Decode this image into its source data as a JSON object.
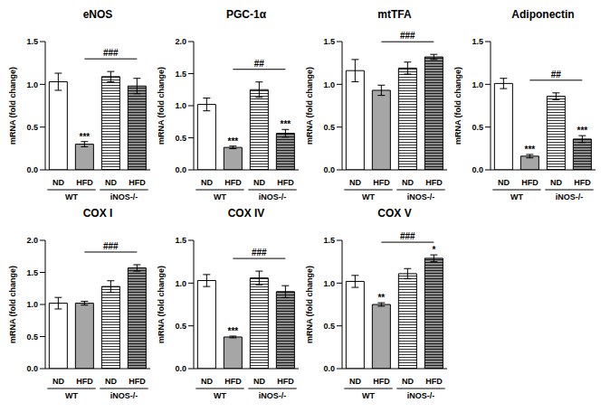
{
  "chart_data": [
    {
      "type": "bar",
      "title": "eNOS",
      "y_label": "mRNA (fold change)",
      "categories": [
        "ND",
        "HFD",
        "ND",
        "HFD"
      ],
      "groups": [
        {
          "label": "WT",
          "from": 0,
          "to": 1
        },
        {
          "label": "iNOS-/-",
          "from": 2,
          "to": 3
        }
      ],
      "values": [
        1.03,
        0.3,
        1.09,
        0.98
      ],
      "errors": [
        0.1,
        0.03,
        0.06,
        0.09
      ],
      "significance": [
        null,
        "***",
        null,
        null
      ],
      "bracket": {
        "from": 1,
        "to": 3,
        "label": "###"
      },
      "colors": [
        "#ffffff",
        "#a6a6a6",
        "#ffffff",
        "#8c8c8c"
      ],
      "ylim": [
        0,
        1.5
      ],
      "yticks": [
        {
          "value": 0,
          "label": "0.0"
        },
        {
          "value": 0.5,
          "label": "0.5"
        },
        {
          "value": 1,
          "label": "1.0"
        },
        {
          "value": 1.5,
          "label": "1.5"
        }
      ]
    },
    {
      "type": "bar",
      "title": "PGC-1α",
      "y_label": "mRNA (fold change)",
      "categories": [
        "ND",
        "HFD",
        "ND",
        "HFD"
      ],
      "groups": [
        {
          "label": "WT",
          "from": 0,
          "to": 1
        },
        {
          "label": "iNOS-/-",
          "from": 2,
          "to": 3
        }
      ],
      "values": [
        1.02,
        0.35,
        1.25,
        0.57
      ],
      "errors": [
        0.1,
        0.02,
        0.12,
        0.06
      ],
      "significance": [
        null,
        "***",
        null,
        "***"
      ],
      "bracket": {
        "from": 1,
        "to": 3,
        "label": "##"
      },
      "colors": [
        "#ffffff",
        "#a6a6a6",
        "#ffffff",
        "#8c8c8c"
      ],
      "ylim": [
        0,
        2
      ],
      "yticks": [
        {
          "value": 0,
          "label": "0.0"
        },
        {
          "value": 0.5,
          "label": "0.5"
        },
        {
          "value": 1,
          "label": "1.0"
        },
        {
          "value": 1.5,
          "label": "1.5"
        },
        {
          "value": 2,
          "label": "2.0"
        }
      ]
    },
    {
      "type": "bar",
      "title": "mtTFA",
      "y_label": "mRNA (fold change)",
      "categories": [
        "ND",
        "HFD",
        "ND",
        "HFD"
      ],
      "groups": [
        {
          "label": "WT",
          "from": 0,
          "to": 1
        },
        {
          "label": "iNOS-/-",
          "from": 2,
          "to": 3
        }
      ],
      "values": [
        1.16,
        0.93,
        1.19,
        1.32
      ],
      "errors": [
        0.13,
        0.06,
        0.07,
        0.03
      ],
      "significance": [
        null,
        null,
        null,
        null
      ],
      "bracket": {
        "from": 1,
        "to": 3,
        "label": "###"
      },
      "colors": [
        "#ffffff",
        "#a6a6a6",
        "#ffffff",
        "#8c8c8c"
      ],
      "ylim": [
        0,
        1.5
      ],
      "yticks": [
        {
          "value": 0,
          "label": "0.0"
        },
        {
          "value": 0.5,
          "label": "0.5"
        },
        {
          "value": 1,
          "label": "1.0"
        },
        {
          "value": 1.5,
          "label": "1.5"
        }
      ]
    },
    {
      "type": "bar",
      "title": "Adiponectin",
      "y_label": "mRNA (fold change)",
      "categories": [
        "ND",
        "HFD",
        "ND",
        "HFD"
      ],
      "groups": [
        {
          "label": "WT",
          "from": 0,
          "to": 1
        },
        {
          "label": "iNOS-/-",
          "from": 2,
          "to": 3
        }
      ],
      "values": [
        1.01,
        0.16,
        0.86,
        0.36
      ],
      "errors": [
        0.06,
        0.02,
        0.04,
        0.04
      ],
      "significance": [
        null,
        "***",
        null,
        "***"
      ],
      "bracket": {
        "from": 1,
        "to": 3,
        "label": "##"
      },
      "colors": [
        "#ffffff",
        "#a6a6a6",
        "#ffffff",
        "#8c8c8c"
      ],
      "ylim": [
        0,
        1.5
      ],
      "yticks": [
        {
          "value": 0,
          "label": "0.0"
        },
        {
          "value": 0.5,
          "label": "0.5"
        },
        {
          "value": 1,
          "label": "1.0"
        },
        {
          "value": 1.5,
          "label": "1.5"
        }
      ]
    },
    {
      "type": "bar",
      "title": "COX I",
      "y_label": "mRNA (fold change)",
      "categories": [
        "ND",
        "HFD",
        "ND",
        "HFD"
      ],
      "groups": [
        {
          "label": "WT",
          "from": 0,
          "to": 1
        },
        {
          "label": "iNOS-/-",
          "from": 2,
          "to": 3
        }
      ],
      "values": [
        1.02,
        1.02,
        1.28,
        1.57
      ],
      "errors": [
        0.09,
        0.03,
        0.09,
        0.05
      ],
      "significance": [
        null,
        null,
        null,
        null
      ],
      "bracket": {
        "from": 1,
        "to": 3,
        "label": "###"
      },
      "colors": [
        "#ffffff",
        "#a6a6a6",
        "#ffffff",
        "#8c8c8c"
      ],
      "ylim": [
        0,
        2
      ],
      "yticks": [
        {
          "value": 0,
          "label": "0.0"
        },
        {
          "value": 0.5,
          "label": "0.5"
        },
        {
          "value": 1,
          "label": "1.0"
        },
        {
          "value": 1.5,
          "label": "1.5"
        },
        {
          "value": 2,
          "label": "2.0"
        }
      ]
    },
    {
      "type": "bar",
      "title": "COX IV",
      "y_label": "mRNA (fold change)",
      "categories": [
        "ND",
        "HFD",
        "ND",
        "HFD"
      ],
      "groups": [
        {
          "label": "WT",
          "from": 0,
          "to": 1
        },
        {
          "label": "iNOS-/-",
          "from": 2,
          "to": 3
        }
      ],
      "values": [
        1.03,
        0.37,
        1.06,
        0.9
      ],
      "errors": [
        0.07,
        0.01,
        0.08,
        0.07
      ],
      "significance": [
        null,
        "***",
        null,
        null
      ],
      "bracket": {
        "from": 1,
        "to": 3,
        "label": "###"
      },
      "colors": [
        "#ffffff",
        "#a6a6a6",
        "#ffffff",
        "#8c8c8c"
      ],
      "ylim": [
        0,
        1.5
      ],
      "yticks": [
        {
          "value": 0,
          "label": "0.0"
        },
        {
          "value": 0.5,
          "label": "0.5"
        },
        {
          "value": 1,
          "label": "1.0"
        },
        {
          "value": 1.5,
          "label": "1.5"
        }
      ]
    },
    {
      "type": "bar",
      "title": "COX V",
      "y_label": "mRNA (fold change)",
      "categories": [
        "ND",
        "HFD",
        "ND",
        "HFD"
      ],
      "groups": [
        {
          "label": "WT",
          "from": 0,
          "to": 1
        },
        {
          "label": "iNOS-/-",
          "from": 2,
          "to": 3
        }
      ],
      "values": [
        1.02,
        0.75,
        1.11,
        1.29
      ],
      "errors": [
        0.07,
        0.02,
        0.06,
        0.04
      ],
      "significance": [
        null,
        "**",
        null,
        "*"
      ],
      "bracket": {
        "from": 1,
        "to": 3,
        "label": "###"
      },
      "colors": [
        "#ffffff",
        "#a6a6a6",
        "#ffffff",
        "#8c8c8c"
      ],
      "ylim": [
        0,
        1.5
      ],
      "yticks": [
        {
          "value": 0,
          "label": "0.0"
        },
        {
          "value": 0.5,
          "label": "0.5"
        },
        {
          "value": 1,
          "label": "1.0"
        },
        {
          "value": 1.5,
          "label": "1.5"
        }
      ]
    }
  ]
}
